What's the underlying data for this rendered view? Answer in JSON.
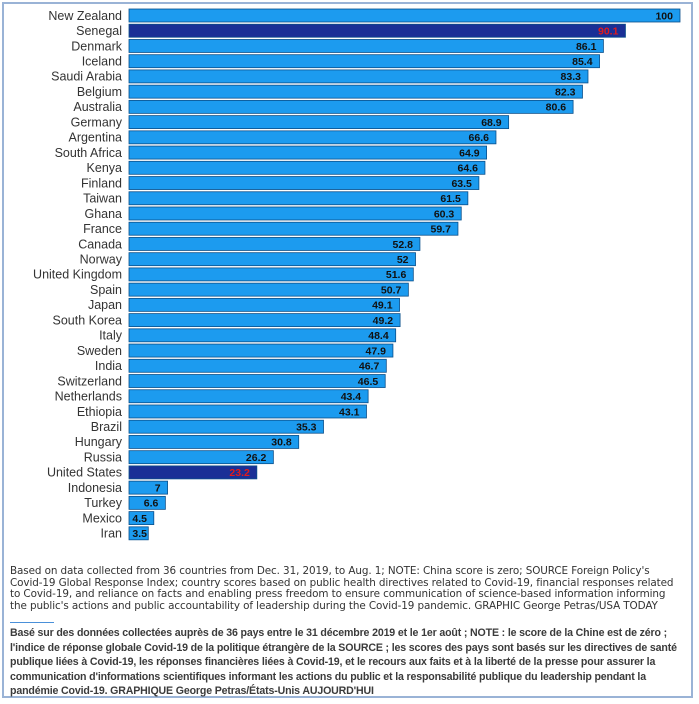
{
  "chart_data": {
    "type": "bar",
    "orientation": "horizontal",
    "categories": [
      "New Zealand",
      "Senegal",
      "Denmark",
      "Iceland",
      "Saudi Arabia",
      "Belgium",
      "Australia",
      "Germany",
      "Argentina",
      "South Africa",
      "Kenya",
      "Finland",
      "Taiwan",
      "Ghana",
      "France",
      "Canada",
      "Norway",
      "United Kingdom",
      "Spain",
      "Japan",
      "South Korea",
      "Italy",
      "Sweden",
      "India",
      "Switzerland",
      "Netherlands",
      "Ethiopia",
      "Brazil",
      "Hungary",
      "Russia",
      "United States",
      "Indonesia",
      "Turkey",
      "Mexico",
      "Iran"
    ],
    "values": [
      100,
      90.1,
      86.1,
      85.4,
      83.3,
      82.3,
      80.6,
      68.9,
      66.6,
      64.9,
      64.6,
      63.5,
      61.5,
      60.3,
      59.7,
      52.8,
      52,
      51.6,
      50.7,
      49.1,
      49.2,
      48.4,
      47.9,
      46.7,
      46.5,
      43.4,
      43.1,
      35.3,
      30.8,
      26.2,
      23.2,
      7,
      6.6,
      4.5,
      3.5
    ],
    "value_labels": [
      "100",
      "90.1",
      "86.1",
      "85.4",
      "83.3",
      "82.3",
      "80.6",
      "68.9",
      "66.6",
      "64.9",
      "64.6",
      "63.5",
      "61.5",
      "60.3",
      "59.7",
      "52.8",
      "52",
      "51.6",
      "50.7",
      "49.1",
      "49.2",
      "48.4",
      "47.9",
      "46.7",
      "46.5",
      "43.4",
      "43.1",
      "35.3",
      "30.8",
      "26.2",
      "23.2",
      "7",
      "6.6",
      "4.5",
      "3.5"
    ],
    "highlighted": [
      "Senegal",
      "United States"
    ],
    "xlim": [
      0,
      100
    ],
    "grid": false,
    "colors": {
      "bar": "#1c9bef",
      "highlight_bar": "#1a2f96",
      "highlight_label": "#e01b1b",
      "bar_edge": "#0a4f8a"
    }
  },
  "notes": {
    "english": "Based on data collected from 36 countries from Dec. 31, 2019, to Aug. 1; NOTE: China score is zero; SOURCE Foreign Policy's Covid-19 Global Response Index; country scores based on public health directives related to Covid-19, financial responses related to Covid-19, and reliance on facts and enabling press freedom to ensure communication of science-based information informing the public's actions and public accountability of leadership during the Covid-19 pandemic. GRAPHIC George Petras/USA TODAY",
    "french": "Basé sur des données collectées auprès de 36 pays entre le 31 décembre 2019 et le 1er août ; NOTE : le score de la Chine est de zéro ; l'indice de réponse globale Covid-19 de la politique étrangère de la SOURCE ; les scores des pays sont basés sur les directives de santé publique liées à Covid-19, les réponses financières liées à Covid-19, et le recours aux faits et à la liberté de la presse pour assurer la communication d'informations scientifiques informant les actions du public et la responsabilité publique du leadership pendant la pandémie Covid-19. GRAPHIQUE George Petras/États-Unis AUJOURD'HUI"
  }
}
